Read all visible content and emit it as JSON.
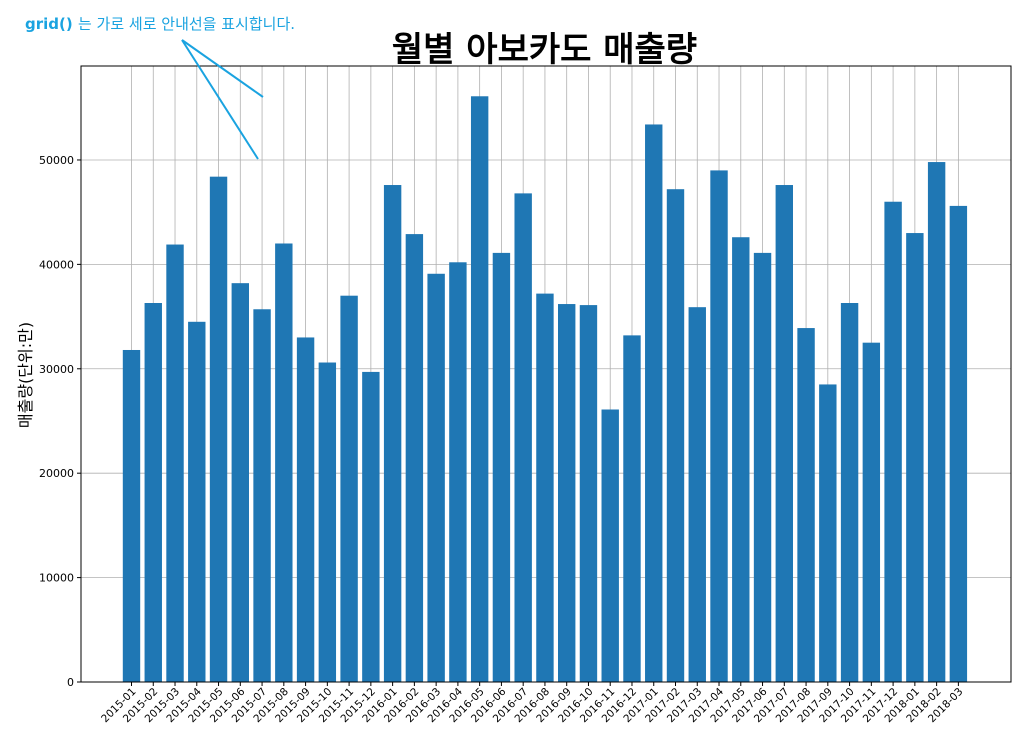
{
  "annotation": {
    "code": "grid()",
    "text": "는 가로 세로 안내선을 표시합니다."
  },
  "chart_data": {
    "type": "bar",
    "title": "월별 아보카도 매출량",
    "xlabel": "",
    "ylabel": "매출량(단위:만)",
    "ylim": [
      0,
      59000
    ],
    "yticks": [
      0,
      10000,
      20000,
      30000,
      40000,
      50000
    ],
    "grid": true,
    "categories": [
      "2015-01",
      "2015-02",
      "2015-03",
      "2015-04",
      "2015-05",
      "2015-06",
      "2015-07",
      "2015-08",
      "2015-09",
      "2015-10",
      "2015-11",
      "2015-12",
      "2016-01",
      "2016-02",
      "2016-03",
      "2016-04",
      "2016-05",
      "2016-06",
      "2016-07",
      "2016-08",
      "2016-09",
      "2016-10",
      "2016-11",
      "2016-12",
      "2017-01",
      "2017-02",
      "2017-03",
      "2017-04",
      "2017-05",
      "2017-06",
      "2017-07",
      "2017-08",
      "2017-09",
      "2017-10",
      "2017-11",
      "2017-12",
      "2018-01",
      "2018-02",
      "2018-03"
    ],
    "values": [
      31800,
      36300,
      41900,
      34500,
      48400,
      38200,
      35700,
      42000,
      33000,
      30600,
      37000,
      29700,
      47600,
      42900,
      39100,
      40200,
      56100,
      41100,
      46800,
      37200,
      36200,
      36100,
      26100,
      33200,
      53400,
      47200,
      35900,
      49000,
      42600,
      41100,
      47600,
      33900,
      28500,
      36300,
      32500,
      46000,
      43000,
      49800,
      45600
    ],
    "bar_color": "#1f77b4",
    "grid_color": "#b0b0b0"
  }
}
